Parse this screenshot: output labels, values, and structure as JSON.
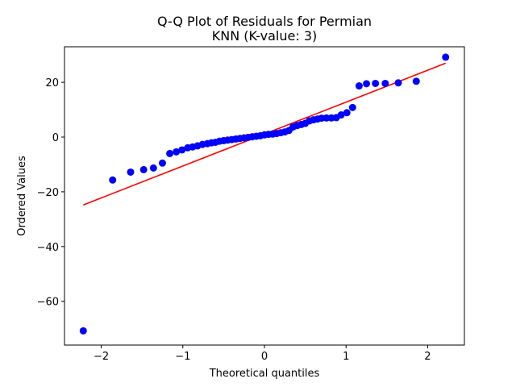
{
  "chart_data": {
    "type": "scatter",
    "title": "Q-Q Plot of Residuals for Permian",
    "subtitle": "KNN (K-value: 3)",
    "xlabel": "Theoretical quantiles",
    "ylabel": "Ordered Values",
    "xlim": [
      -2.45,
      2.45
    ],
    "ylim": [
      -76,
      33
    ],
    "xticks": [
      -2,
      -1,
      0,
      1,
      2
    ],
    "xtick_labels": [
      "−2",
      "−1",
      "0",
      "1",
      "2"
    ],
    "yticks": [
      -60,
      -40,
      -20,
      0,
      20
    ],
    "ytick_labels": [
      "−60",
      "−40",
      "−20",
      "0",
      "20"
    ],
    "grid": false,
    "point_color": "#0000ff",
    "line_color": "#ff0000",
    "fit_line": {
      "x": [
        -2.22,
        2.22
      ],
      "y": [
        -24.8,
        27.0
      ]
    },
    "points": {
      "x": [
        -2.22,
        -1.86,
        -1.64,
        -1.48,
        -1.36,
        -1.25,
        -1.16,
        -1.08,
        -1.01,
        -0.94,
        -0.88,
        -0.82,
        -0.76,
        -0.7,
        -0.65,
        -0.6,
        -0.55,
        -0.5,
        -0.45,
        -0.4,
        -0.35,
        -0.3,
        -0.25,
        -0.2,
        -0.15,
        -0.1,
        -0.05,
        0.0,
        0.05,
        0.1,
        0.15,
        0.2,
        0.25,
        0.3,
        0.35,
        0.4,
        0.45,
        0.5,
        0.55,
        0.6,
        0.65,
        0.7,
        0.76,
        0.82,
        0.88,
        0.94,
        1.01,
        1.08,
        1.16,
        1.25,
        1.36,
        1.48,
        1.64,
        1.86,
        2.22
      ],
      "y": [
        -70.8,
        -15.7,
        -12.8,
        -11.9,
        -11.3,
        -9.5,
        -6.0,
        -5.4,
        -4.7,
        -3.9,
        -3.6,
        -3.2,
        -2.7,
        -2.4,
        -2.1,
        -1.9,
        -1.5,
        -1.3,
        -1.1,
        -0.9,
        -0.7,
        -0.5,
        -0.3,
        -0.1,
        0.1,
        0.3,
        0.5,
        0.8,
        1.0,
        1.1,
        1.3,
        1.6,
        1.9,
        2.4,
        3.7,
        4.2,
        4.6,
        5.0,
        5.9,
        6.3,
        6.6,
        6.9,
        7.0,
        7.0,
        7.1,
        8.1,
        8.9,
        10.8,
        18.7,
        19.5,
        19.6,
        19.6,
        19.8,
        20.4,
        29.2
      ]
    }
  }
}
